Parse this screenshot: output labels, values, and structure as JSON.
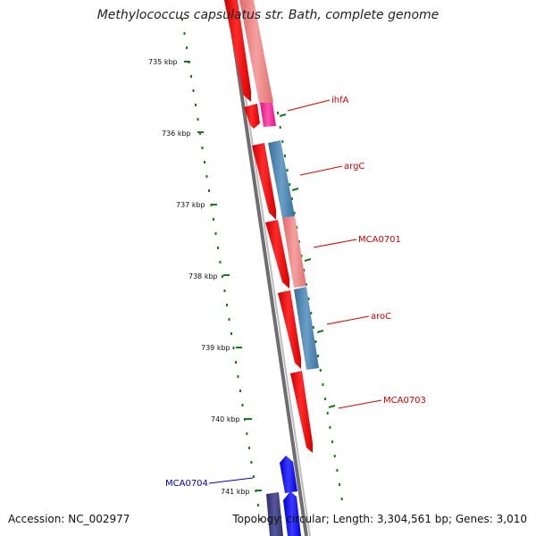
{
  "title": "Methylococcus capsulatus str. Bath, complete genome",
  "footer": {
    "accession": "Accession: NC_002977",
    "topology": "Topology: circular; Length: 3,304,561 bp; Genes: 3,010"
  },
  "scale_ticks": [
    "735 kbp",
    "736 kbp",
    "737 kbp",
    "738 kbp",
    "739 kbp",
    "740 kbp",
    "741 kbp"
  ],
  "gene_labels": [
    "ihfA",
    "argC",
    "MCA0701",
    "aroC",
    "MCA0703",
    "MCA0704"
  ],
  "colors": {
    "backbone": "#888888",
    "forward_gene": "#ff0000",
    "cds_pink": "#f08080",
    "cds_blue": "#4682b4",
    "cds_magenta": "#ff1493",
    "reverse_gene": "#0000ff",
    "reverse_dark": "#3a3a7a",
    "ticks": "#1a7a1a",
    "label_red": "#d00000",
    "label_blue": "#0000cc"
  }
}
